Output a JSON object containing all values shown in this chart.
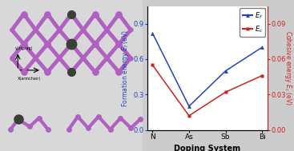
{
  "categories": [
    "N",
    "As",
    "Sb",
    "Bi"
  ],
  "formation_energy": [
    0.82,
    0.2,
    0.5,
    0.7
  ],
  "cohesive_energy": [
    0.055,
    0.012,
    0.032,
    0.046
  ],
  "xlabel": "Doping System",
  "left_ylim": [
    0.0,
    1.05
  ],
  "right_ylim": [
    0.0,
    0.105
  ],
  "left_yticks": [
    0.0,
    0.3,
    0.6,
    0.9
  ],
  "right_yticks": [
    0.0,
    0.03,
    0.06,
    0.09
  ],
  "blue_color": "#2244bb",
  "red_color": "#cc2222",
  "purple": "#b060c0",
  "dark": "#384038",
  "bg_color": "#d8d8d8",
  "fig_bg": "#cccccc"
}
